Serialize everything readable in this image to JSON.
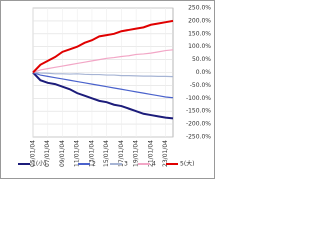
{
  "chart_data": {
    "type": "line",
    "categories": [
      "05/01/04",
      null,
      "07/01/04",
      null,
      "09/01/04",
      null,
      "11/01/04",
      null,
      "13/01/04",
      null,
      "15/01/04",
      null,
      "17/01/04",
      null,
      "19/01/04",
      null,
      "21/01/04",
      null,
      "23/01/04",
      null
    ],
    "series": [
      {
        "name": "1(小)",
        "color": "#1c1c7a",
        "values": [
          0,
          -30,
          -40,
          -45,
          -55,
          -65,
          -80,
          -90,
          -100,
          -110,
          -115,
          -125,
          -130,
          -140,
          -150,
          -160,
          -165,
          -170,
          -175,
          -178
        ]
      },
      {
        "name": "2",
        "color": "#4a62cc",
        "values": [
          0,
          -10,
          -15,
          -20,
          -25,
          -30,
          -35,
          -40,
          -45,
          -50,
          -55,
          -60,
          -65,
          -70,
          -75,
          -80,
          -85,
          -90,
          -95,
          -98
        ]
      },
      {
        "name": "3",
        "color": "#a6b4d4",
        "values": [
          0,
          -2,
          -3,
          -5,
          -5,
          -6,
          -5,
          -7,
          -8,
          -8,
          -10,
          -10,
          -12,
          -12,
          -13,
          -14,
          -14,
          -15,
          -15,
          -16
        ]
      },
      {
        "name": "4",
        "color": "#f2a6c6",
        "values": [
          0,
          10,
          15,
          20,
          25,
          30,
          35,
          40,
          45,
          50,
          55,
          58,
          62,
          65,
          70,
          72,
          75,
          80,
          85,
          88
        ]
      },
      {
        "name": "5(大)",
        "color": "#e00000",
        "values": [
          0,
          30,
          45,
          60,
          80,
          90,
          100,
          115,
          125,
          140,
          145,
          150,
          160,
          165,
          170,
          175,
          185,
          190,
          195,
          200
        ]
      }
    ],
    "ylim": [
      -250,
      250
    ],
    "yticks": [
      {
        "value": -250,
        "label": "-250.0%"
      },
      {
        "value": -200,
        "label": "-200.0%"
      },
      {
        "value": -150,
        "label": "-150.0%"
      },
      {
        "value": -100,
        "label": "-100.0%"
      },
      {
        "value": -50,
        "label": "-50.0%"
      },
      {
        "value": 0,
        "label": "0.0%"
      },
      {
        "value": 50,
        "label": "50.0%"
      },
      {
        "value": 100,
        "label": "100.0%"
      },
      {
        "value": 150,
        "label": "150.0%"
      },
      {
        "value": 200,
        "label": "200.0%"
      },
      {
        "value": 250,
        "label": "250.0%"
      }
    ],
    "grid": true
  }
}
